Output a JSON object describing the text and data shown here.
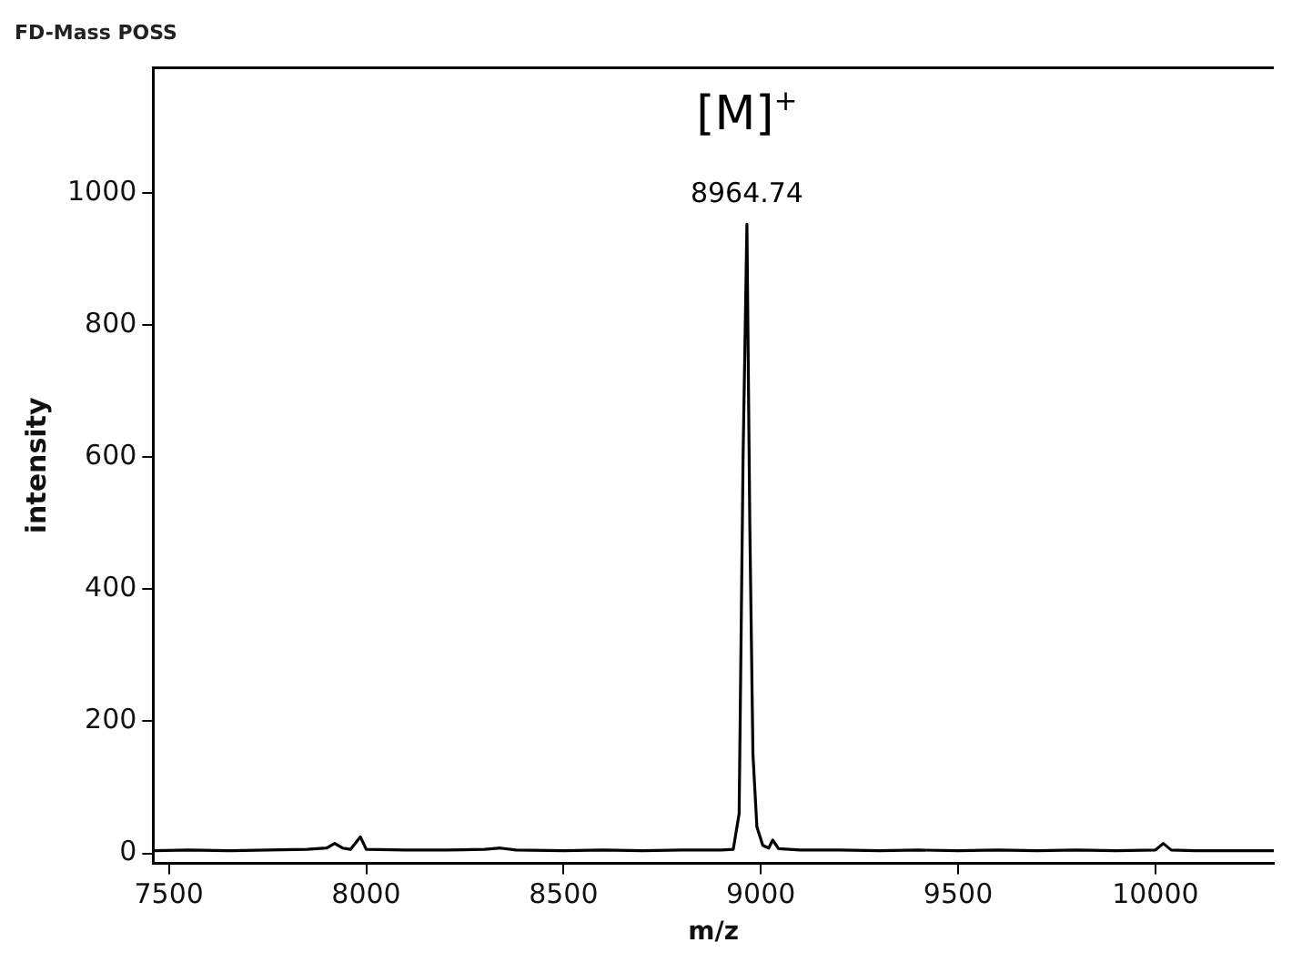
{
  "chart_data": {
    "type": "line",
    "title": "FD-Mass POSS",
    "xlabel": "m/z",
    "ylabel": "intensity",
    "x": [
      7460,
      7550,
      7650,
      7750,
      7850,
      7900,
      7920,
      7940,
      7960,
      7985,
      8000,
      8100,
      8200,
      8300,
      8340,
      8380,
      8500,
      8600,
      8700,
      8800,
      8900,
      8930,
      8945,
      8955,
      8964.74,
      8972,
      8980,
      8990,
      9005,
      9020,
      9030,
      9045,
      9100,
      9200,
      9300,
      9400,
      9500,
      9600,
      9700,
      9800,
      9900,
      10000,
      10020,
      10040,
      10100,
      10200,
      10300
    ],
    "series": [
      {
        "color": "#000000",
        "values": [
          4,
          5,
          4,
          5,
          6,
          8,
          15,
          8,
          6,
          25,
          6,
          5,
          5,
          6,
          8,
          5,
          4,
          5,
          4,
          5,
          5,
          6,
          60,
          600,
          953,
          500,
          150,
          40,
          12,
          8,
          20,
          7,
          5,
          5,
          4,
          5,
          4,
          5,
          4,
          5,
          4,
          5,
          15,
          5,
          4,
          4,
          4
        ]
      }
    ],
    "annotations": [
      {
        "text": "[M]$^{+}$",
        "x": 8964.74,
        "y": 953
      },
      {
        "text": "8964.74",
        "x": 8964.74,
        "y": 953
      }
    ],
    "xlim": [
      7460,
      10300
    ],
    "ylim": [
      -15,
      1190
    ],
    "xticks": [
      7500,
      8000,
      8500,
      9000,
      9500,
      10000
    ],
    "yticks": [
      0,
      200,
      400,
      600,
      800,
      1000
    ],
    "grid": false,
    "legend": false,
    "marker": "none",
    "line_style": "solid"
  }
}
